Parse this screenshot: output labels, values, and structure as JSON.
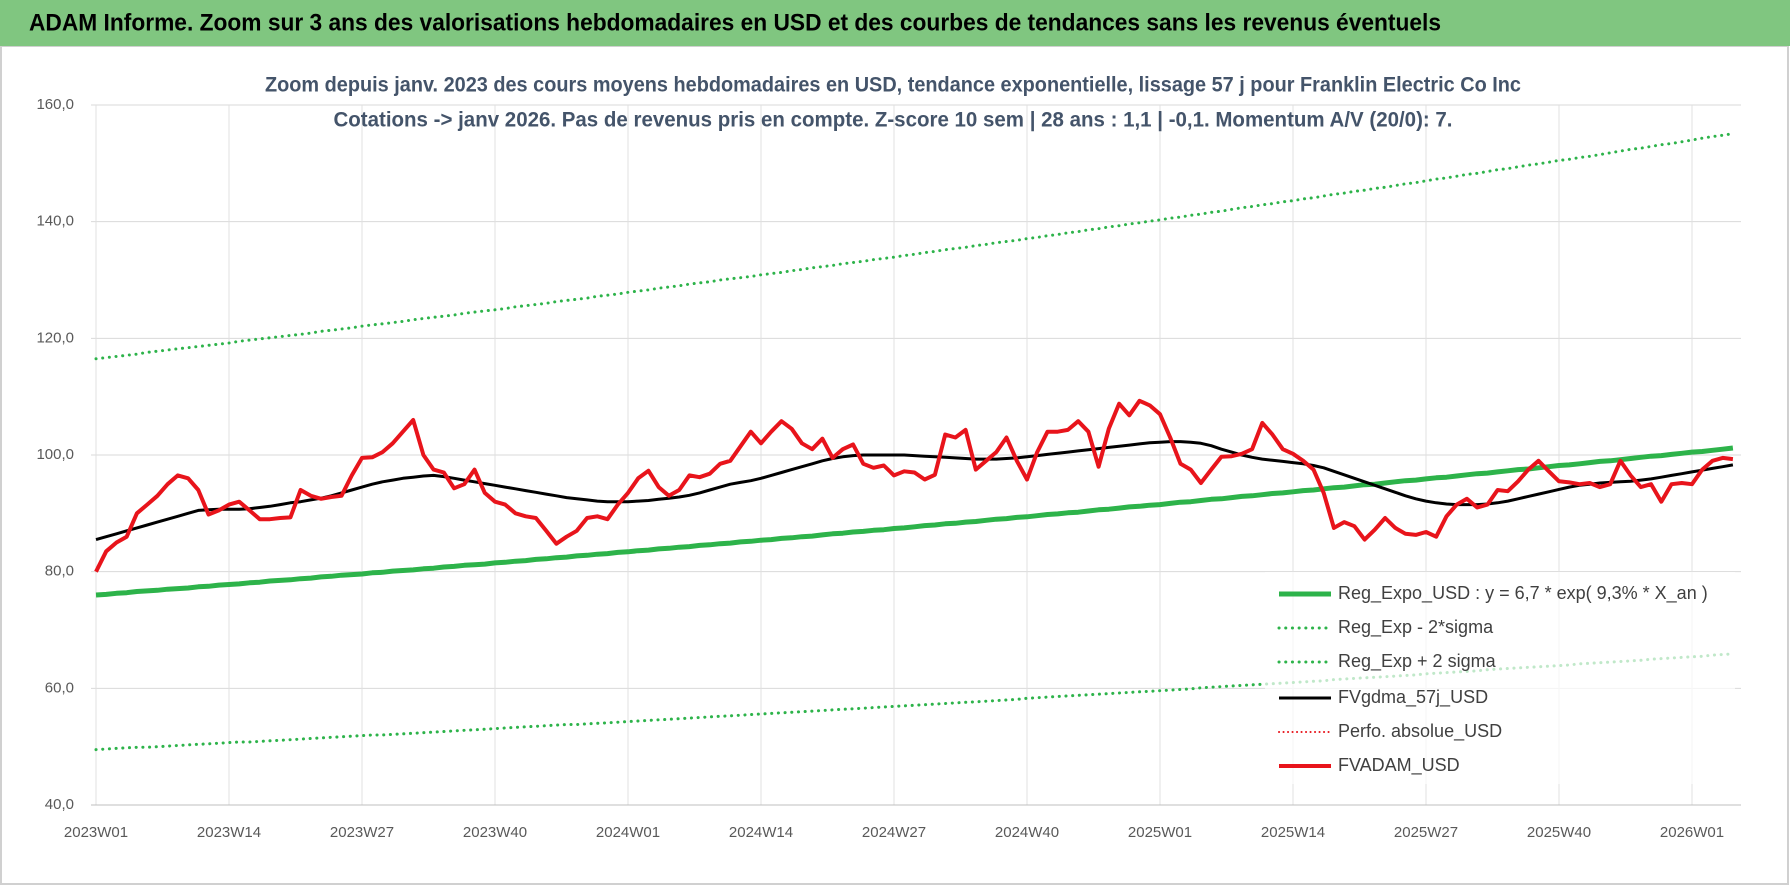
{
  "header": {
    "title": "ADAM Informe. Zoom sur 3 ans des valorisations hebdomadaires en USD et des courbes de tendances sans les revenus éventuels"
  },
  "chart_data": {
    "type": "line",
    "title": [
      "Zoom depuis janv. 2023 des cours moyens hebdomadaires en USD, tendance exponentielle, lissage 57 j pour Franklin Electric Co Inc",
      "Cotations -> janv 2026. Pas de revenus pris en compte. Z-score 10 sem | 28 ans : 1,1 | -0,1. Momentum A/V (20/0): 7."
    ],
    "categories": [
      "2023W01",
      null,
      null,
      null,
      null,
      null,
      null,
      null,
      null,
      null,
      null,
      null,
      null,
      "2023W14",
      null,
      null,
      null,
      null,
      null,
      null,
      null,
      null,
      null,
      null,
      null,
      null,
      "2023W27",
      null,
      null,
      null,
      null,
      null,
      null,
      null,
      null,
      null,
      null,
      null,
      null,
      "2023W40",
      null,
      null,
      null,
      null,
      null,
      null,
      null,
      null,
      null,
      null,
      null,
      null,
      "2024W01",
      null,
      null,
      null,
      null,
      null,
      null,
      null,
      null,
      null,
      null,
      null,
      null,
      "2024W14",
      null,
      null,
      null,
      null,
      null,
      null,
      null,
      null,
      null,
      null,
      null,
      null,
      "2024W27",
      null,
      null,
      null,
      null,
      null,
      null,
      null,
      null,
      null,
      null,
      null,
      null,
      "2024W40",
      null,
      null,
      null,
      null,
      null,
      null,
      null,
      null,
      null,
      null,
      null,
      null,
      "2025W01",
      null,
      null,
      null,
      null,
      null,
      null,
      null,
      null,
      null,
      null,
      null,
      null,
      "2025W14",
      null,
      null,
      null,
      null,
      null,
      null,
      null,
      null,
      null,
      null,
      null,
      null,
      "2025W27",
      null,
      null,
      null,
      null,
      null,
      null,
      null,
      null,
      null,
      null,
      null,
      null,
      "2025W40",
      null,
      null,
      null,
      null,
      null,
      null,
      null,
      null,
      null,
      null,
      null,
      null,
      "2026W01",
      null,
      null,
      null,
      null
    ],
    "ylim": [
      40,
      160
    ],
    "yticks": [
      {
        "value": 40,
        "label": "40,0"
      },
      {
        "value": 60,
        "label": "60,0"
      },
      {
        "value": 80,
        "label": "80,0"
      },
      {
        "value": 100,
        "label": "100,0"
      },
      {
        "value": 120,
        "label": "120,0"
      },
      {
        "value": 140,
        "label": "140,0"
      },
      {
        "value": 160,
        "label": "160,0"
      }
    ],
    "grid": true,
    "legend": "lower right",
    "series": [
      {
        "name": "Reg_Expo_USD : y = 6,7 * exp( 9,3% * X_an )",
        "color": "#2db34a",
        "style": "solid",
        "width": 5,
        "values": [
          76.0,
          76.1,
          76.3,
          76.4,
          76.6,
          76.7,
          76.8,
          77.0,
          77.1,
          77.2,
          77.4,
          77.5,
          77.7,
          77.8,
          77.9,
          78.1,
          78.2,
          78.4,
          78.5,
          78.6,
          78.8,
          78.9,
          79.1,
          79.2,
          79.4,
          79.5,
          79.6,
          79.8,
          79.9,
          80.1,
          80.2,
          80.3,
          80.5,
          80.6,
          80.8,
          80.9,
          81.1,
          81.2,
          81.3,
          81.5,
          81.6,
          81.8,
          81.9,
          82.1,
          82.2,
          82.4,
          82.5,
          82.7,
          82.8,
          83.0,
          83.1,
          83.3,
          83.4,
          83.6,
          83.7,
          83.9,
          84.0,
          84.2,
          84.3,
          84.5,
          84.6,
          84.8,
          84.9,
          85.1,
          85.2,
          85.4,
          85.5,
          85.7,
          85.8,
          86.0,
          86.1,
          86.3,
          86.5,
          86.6,
          86.8,
          86.9,
          87.1,
          87.2,
          87.4,
          87.5,
          87.7,
          87.9,
          88.0,
          88.2,
          88.3,
          88.5,
          88.6,
          88.8,
          89.0,
          89.1,
          89.3,
          89.4,
          89.6,
          89.8,
          89.9,
          90.1,
          90.2,
          90.4,
          90.6,
          90.7,
          90.9,
          91.1,
          91.2,
          91.4,
          91.5,
          91.7,
          91.9,
          92.0,
          92.2,
          92.4,
          92.5,
          92.7,
          92.9,
          93.0,
          93.2,
          93.4,
          93.5,
          93.7,
          93.9,
          94.0,
          94.2,
          94.4,
          94.5,
          94.7,
          94.9,
          95.0,
          95.2,
          95.4,
          95.6,
          95.7,
          95.9,
          96.1,
          96.2,
          96.4,
          96.6,
          96.8,
          96.9,
          97.1,
          97.3,
          97.5,
          97.6,
          97.8,
          98.0,
          98.2,
          98.3,
          98.5,
          98.7,
          98.9,
          99.0,
          99.2,
          99.4,
          99.6,
          99.8,
          99.9,
          100.1,
          100.3,
          100.5,
          100.6,
          100.8,
          101.0,
          101.2
        ]
      },
      {
        "name": "Reg_Exp - 2*sigma",
        "color": "#2db34a",
        "style": "dotted",
        "width": 3,
        "values": [
          49.5,
          49.6,
          49.7,
          49.8,
          49.9,
          49.9,
          50.0,
          50.1,
          50.2,
          50.3,
          50.4,
          50.5,
          50.6,
          50.7,
          50.8,
          50.8,
          50.9,
          51.0,
          51.1,
          51.2,
          51.3,
          51.4,
          51.5,
          51.6,
          51.7,
          51.8,
          51.9,
          52.0,
          52.0,
          52.1,
          52.2,
          52.3,
          52.4,
          52.5,
          52.6,
          52.7,
          52.8,
          52.9,
          53.0,
          53.1,
          53.2,
          53.3,
          53.4,
          53.5,
          53.6,
          53.7,
          53.8,
          53.8,
          53.9,
          54.0,
          54.1,
          54.2,
          54.3,
          54.4,
          54.5,
          54.6,
          54.7,
          54.8,
          54.9,
          55.0,
          55.1,
          55.2,
          55.3,
          55.4,
          55.5,
          55.6,
          55.7,
          55.8,
          55.9,
          56.0,
          56.1,
          56.2,
          56.3,
          56.4,
          56.5,
          56.6,
          56.7,
          56.8,
          56.9,
          57.0,
          57.1,
          57.2,
          57.3,
          57.4,
          57.5,
          57.6,
          57.7,
          57.8,
          57.9,
          58.0,
          58.1,
          58.3,
          58.4,
          58.5,
          58.6,
          58.7,
          58.8,
          58.9,
          59.0,
          59.1,
          59.2,
          59.3,
          59.4,
          59.5,
          59.6,
          59.7,
          59.8,
          59.9,
          60.1,
          60.2,
          60.3,
          60.4,
          60.5,
          60.6,
          60.7,
          60.8,
          60.9,
          61.0,
          61.1,
          61.2,
          61.3,
          61.5,
          61.6,
          61.7,
          61.8,
          61.9,
          62.0,
          62.1,
          62.2,
          62.3,
          62.5,
          62.6,
          62.7,
          62.8,
          62.9,
          63.0,
          63.2,
          63.3,
          63.4,
          63.5,
          63.6,
          63.7,
          63.8,
          63.9,
          64.0,
          64.2,
          64.3,
          64.4,
          64.5,
          64.6,
          64.7,
          64.8,
          65.0,
          65.1,
          65.2,
          65.3,
          65.4,
          65.5,
          65.7,
          65.8,
          65.9
        ]
      },
      {
        "name": "Reg_Exp + 2 sigma",
        "color": "#2db34a",
        "style": "dotted",
        "width": 3,
        "values": [
          116.5,
          116.7,
          116.9,
          117.1,
          117.3,
          117.6,
          117.8,
          118.0,
          118.2,
          118.4,
          118.6,
          118.8,
          119.0,
          119.2,
          119.5,
          119.7,
          119.9,
          120.1,
          120.3,
          120.5,
          120.7,
          120.9,
          121.2,
          121.4,
          121.6,
          121.8,
          122.1,
          122.3,
          122.5,
          122.7,
          122.9,
          123.2,
          123.4,
          123.6,
          123.8,
          124.0,
          124.3,
          124.5,
          124.7,
          124.9,
          125.1,
          125.4,
          125.6,
          125.8,
          126.0,
          126.3,
          126.5,
          126.7,
          126.9,
          127.2,
          127.4,
          127.6,
          127.9,
          128.1,
          128.3,
          128.6,
          128.8,
          129.0,
          129.3,
          129.5,
          129.7,
          130.0,
          130.2,
          130.4,
          130.6,
          130.9,
          131.1,
          131.3,
          131.6,
          131.8,
          132.1,
          132.3,
          132.5,
          132.8,
          133.0,
          133.2,
          133.5,
          133.7,
          133.9,
          134.2,
          134.4,
          134.7,
          134.9,
          135.2,
          135.4,
          135.6,
          135.9,
          136.1,
          136.4,
          136.6,
          136.8,
          137.1,
          137.3,
          137.6,
          137.8,
          138.1,
          138.3,
          138.6,
          138.8,
          139.1,
          139.3,
          139.6,
          139.8,
          140.1,
          140.3,
          140.6,
          140.8,
          141.1,
          141.3,
          141.6,
          141.8,
          142.1,
          142.4,
          142.6,
          142.9,
          143.1,
          143.4,
          143.6,
          143.9,
          144.1,
          144.4,
          144.7,
          144.9,
          145.2,
          145.4,
          145.7,
          145.9,
          146.2,
          146.5,
          146.7,
          147.0,
          147.3,
          147.5,
          147.8,
          148.1,
          148.3,
          148.6,
          148.9,
          149.1,
          149.4,
          149.7,
          149.9,
          150.2,
          150.5,
          150.7,
          151.0,
          151.2,
          151.5,
          151.8,
          152.1,
          152.4,
          152.6,
          152.9,
          153.2,
          153.4,
          153.7,
          154.0,
          154.3,
          154.6,
          154.8,
          155.1
        ]
      },
      {
        "name": "FVgdma_57j_USD",
        "color": "#000000",
        "style": "solid",
        "width": 3,
        "values": [
          85.5,
          86.0,
          86.5,
          87.0,
          87.5,
          88.0,
          88.5,
          89.0,
          89.5,
          90.0,
          90.5,
          90.6,
          90.7,
          90.7,
          90.7,
          90.8,
          91.0,
          91.2,
          91.5,
          91.8,
          92.0,
          92.3,
          92.6,
          93.0,
          93.5,
          94.0,
          94.5,
          95.0,
          95.4,
          95.7,
          96.0,
          96.2,
          96.4,
          96.5,
          96.3,
          96.0,
          95.7,
          95.4,
          95.1,
          94.8,
          94.5,
          94.2,
          93.9,
          93.6,
          93.3,
          93.0,
          92.7,
          92.5,
          92.3,
          92.1,
          92.0,
          92.0,
          92.0,
          92.1,
          92.2,
          92.4,
          92.6,
          92.8,
          93.1,
          93.5,
          94.0,
          94.5,
          95.0,
          95.3,
          95.6,
          96.0,
          96.5,
          97.0,
          97.5,
          98.0,
          98.5,
          99.0,
          99.4,
          99.7,
          99.9,
          100.0,
          100.0,
          100.0,
          100.0,
          100.0,
          99.9,
          99.8,
          99.7,
          99.6,
          99.5,
          99.4,
          99.3,
          99.3,
          99.3,
          99.4,
          99.5,
          99.7,
          99.9,
          100.1,
          100.3,
          100.5,
          100.7,
          100.9,
          101.1,
          101.3,
          101.5,
          101.7,
          101.9,
          102.1,
          102.2,
          102.3,
          102.3,
          102.2,
          102.0,
          101.6,
          101.0,
          100.5,
          100.0,
          99.6,
          99.3,
          99.1,
          98.9,
          98.7,
          98.5,
          98.2,
          97.8,
          97.2,
          96.6,
          96.0,
          95.4,
          94.8,
          94.2,
          93.6,
          93.0,
          92.5,
          92.1,
          91.8,
          91.6,
          91.5,
          91.5,
          91.5,
          91.6,
          91.8,
          92.1,
          92.5,
          92.9,
          93.3,
          93.7,
          94.1,
          94.5,
          94.8,
          95.0,
          95.2,
          95.3,
          95.4,
          95.5,
          95.7,
          95.9,
          96.2,
          96.5,
          96.8,
          97.1,
          97.4,
          97.7,
          98.0,
          98.3
        ]
      },
      {
        "name": "Perfo. absolue_USD",
        "color": "#e8141b",
        "style": "dotted",
        "width": 2
      },
      {
        "name": "FVADAM_USD",
        "color": "#e8141b",
        "style": "solid",
        "width": 4,
        "values": [
          80,
          83.5,
          85,
          86,
          90,
          91.5,
          93,
          95,
          96.5,
          96,
          94,
          89.8,
          90.5,
          91.5,
          92,
          90.5,
          89,
          89,
          89.2,
          89.3,
          94,
          93,
          92.5,
          92.8,
          93,
          96.5,
          99.5,
          99.6,
          100.5,
          102,
          104,
          106,
          100,
          97.5,
          97,
          94.3,
          95,
          97.5,
          93.5,
          92,
          91.5,
          90,
          89.5,
          89.2,
          87,
          84.8,
          86,
          87,
          89.2,
          89.5,
          89,
          91.5,
          93.5,
          96,
          97.3,
          94.5,
          93,
          94,
          96.5,
          96.2,
          96.8,
          98.5,
          99,
          101.5,
          104,
          102,
          104,
          105.8,
          104.5,
          102,
          101,
          102.8,
          99.5,
          101,
          101.8,
          98.5,
          97.8,
          98.2,
          96.5,
          97.2,
          97,
          95.8,
          96.6,
          103.5,
          103,
          104.3,
          97.5,
          99,
          100.5,
          103,
          99,
          95.8,
          100.5,
          104,
          104,
          104.3,
          105.8,
          104,
          98,
          104.5,
          108.8,
          106.8,
          109.3,
          108.5,
          107,
          103,
          98.5,
          97.5,
          95.2,
          97.5,
          99.7,
          99.8,
          100.2,
          101,
          105.5,
          103.5,
          101,
          100.2,
          99,
          97.5,
          93.5,
          87.5,
          88.5,
          87.8,
          85.5,
          87.2,
          89.2,
          87.5,
          86.5,
          86.3,
          86.8,
          86,
          89.5,
          91.5,
          92.5,
          91,
          91.5,
          94,
          93.8,
          95.5,
          97.5,
          99,
          97.2,
          95.5,
          95.3,
          95,
          95.2,
          94.5,
          95,
          99,
          96.5,
          94.5,
          95,
          92,
          95,
          95.2,
          95,
          97.5,
          99,
          99.5,
          99.3
        ]
      }
    ]
  }
}
